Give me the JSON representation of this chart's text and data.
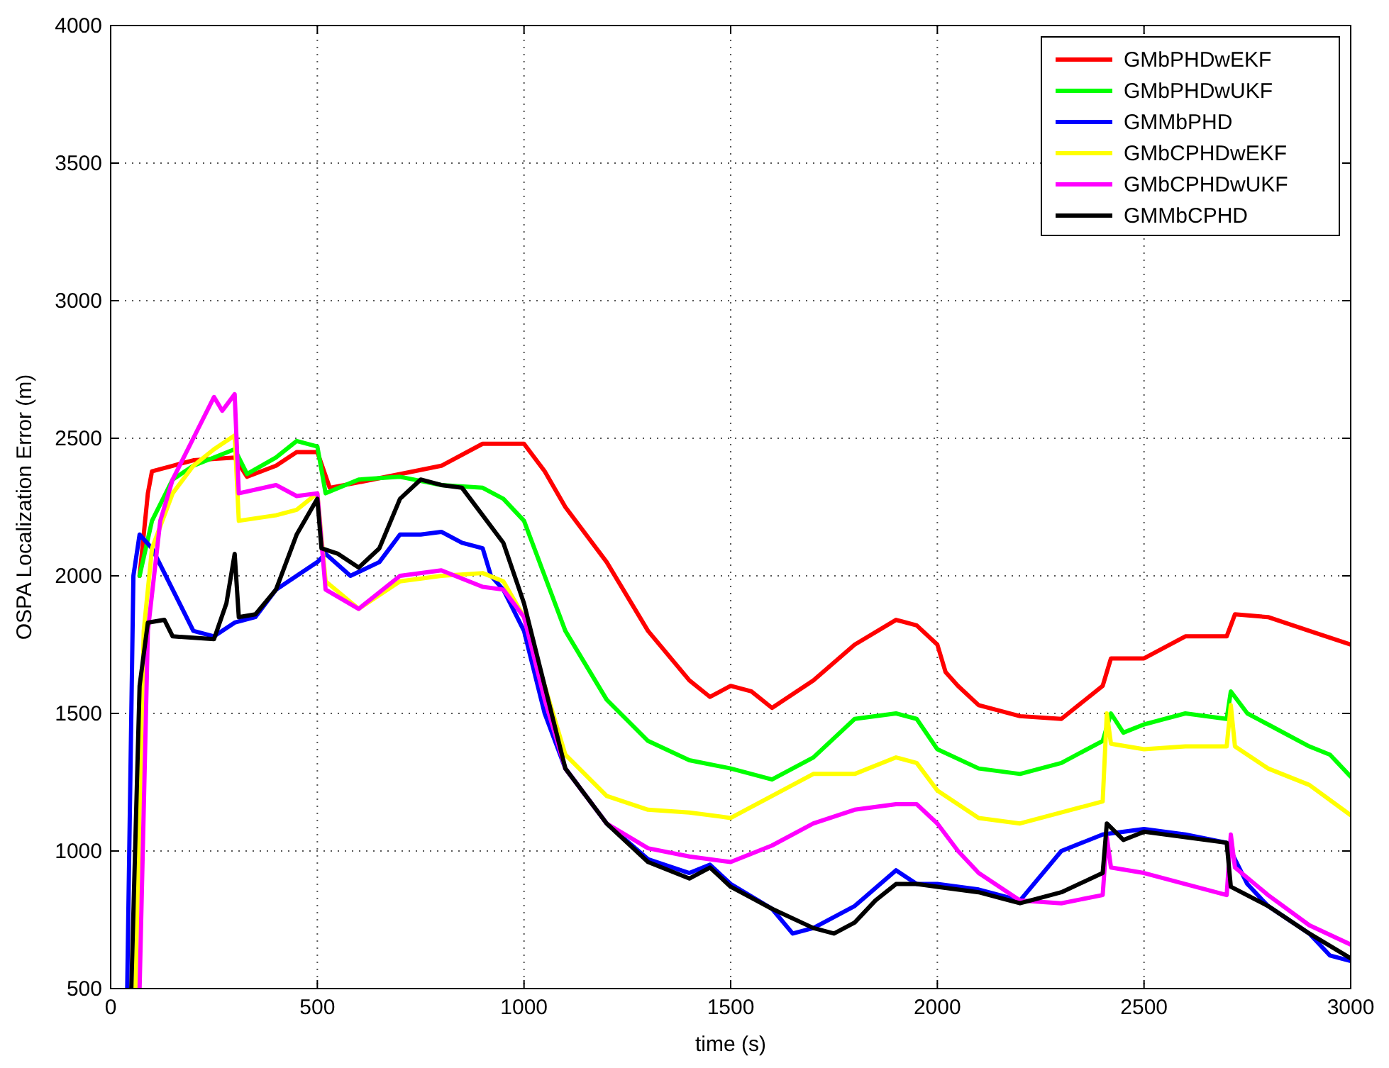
{
  "chart_data": {
    "type": "line",
    "xlabel": "time (s)",
    "ylabel": "OSPA Localization Error (m)",
    "xlim": [
      0,
      3000
    ],
    "ylim": [
      500,
      4000
    ],
    "xticks": [
      0,
      500,
      1000,
      1500,
      2000,
      2500,
      3000
    ],
    "yticks": [
      500,
      1000,
      1500,
      2000,
      2500,
      3000,
      3500,
      4000
    ],
    "grid": true,
    "legend": "top right",
    "line_style": "solid",
    "series": [
      {
        "name": "GMbPHDwEKF",
        "color": "#ff0000",
        "x": [
          70,
          90,
          100,
          150,
          200,
          300,
          330,
          400,
          450,
          500,
          530,
          600,
          700,
          800,
          900,
          1000,
          1050,
          1100,
          1200,
          1300,
          1400,
          1450,
          1500,
          1550,
          1600,
          1700,
          1800,
          1900,
          1950,
          2000,
          2020,
          2050,
          2100,
          2200,
          2300,
          2400,
          2420,
          2500,
          2600,
          2700,
          2720,
          2800,
          2900,
          3000
        ],
        "values": [
          2000,
          2300,
          2380,
          2400,
          2420,
          2430,
          2360,
          2400,
          2450,
          2450,
          2320,
          2340,
          2370,
          2400,
          2480,
          2480,
          2380,
          2250,
          2050,
          1800,
          1620,
          1560,
          1600,
          1580,
          1520,
          1620,
          1750,
          1840,
          1820,
          1750,
          1650,
          1600,
          1530,
          1490,
          1480,
          1600,
          1700,
          1700,
          1780,
          1780,
          1860,
          1850,
          1800,
          1750
        ]
      },
      {
        "name": "GMbPHDwUKF",
        "color": "#00ff00",
        "x": [
          70,
          100,
          150,
          200,
          300,
          330,
          400,
          450,
          500,
          520,
          600,
          700,
          800,
          900,
          950,
          1000,
          1050,
          1100,
          1200,
          1300,
          1400,
          1500,
          1550,
          1600,
          1700,
          1800,
          1900,
          1950,
          2000,
          2100,
          2200,
          2300,
          2400,
          2420,
          2450,
          2500,
          2600,
          2700,
          2710,
          2750,
          2800,
          2900,
          2950,
          3000
        ],
        "values": [
          2000,
          2200,
          2350,
          2400,
          2460,
          2370,
          2430,
          2490,
          2470,
          2300,
          2350,
          2360,
          2330,
          2320,
          2280,
          2200,
          2000,
          1800,
          1550,
          1400,
          1330,
          1300,
          1280,
          1260,
          1340,
          1480,
          1500,
          1480,
          1370,
          1300,
          1280,
          1320,
          1400,
          1500,
          1430,
          1460,
          1500,
          1480,
          1580,
          1500,
          1460,
          1380,
          1350,
          1270
        ]
      },
      {
        "name": "GMMbPHD",
        "color": "#0000ff",
        "x": [
          40,
          55,
          70,
          100,
          150,
          200,
          250,
          300,
          350,
          400,
          450,
          500,
          520,
          580,
          650,
          700,
          750,
          800,
          850,
          900,
          920,
          950,
          1000,
          1050,
          1100,
          1200,
          1300,
          1400,
          1450,
          1500,
          1600,
          1650,
          1700,
          1800,
          1900,
          1950,
          2000,
          2100,
          2200,
          2300,
          2400,
          2500,
          2600,
          2700,
          2750,
          2800,
          2900,
          2950,
          3000
        ],
        "values": [
          500,
          2000,
          2150,
          2100,
          1950,
          1800,
          1780,
          1830,
          1850,
          1950,
          2000,
          2050,
          2080,
          2000,
          2050,
          2150,
          2150,
          2160,
          2120,
          2100,
          2000,
          1950,
          1800,
          1500,
          1300,
          1100,
          970,
          920,
          950,
          880,
          790,
          700,
          720,
          800,
          930,
          880,
          880,
          860,
          820,
          1000,
          1060,
          1080,
          1060,
          1030,
          880,
          800,
          700,
          620,
          600
        ]
      },
      {
        "name": "GMbCPHDwEKF",
        "color": "#ffff00",
        "x": [
          60,
          80,
          100,
          150,
          200,
          250,
          300,
          310,
          400,
          450,
          500,
          520,
          600,
          700,
          800,
          900,
          950,
          1000,
          1050,
          1100,
          1200,
          1300,
          1400,
          1500,
          1600,
          1700,
          1800,
          1900,
          1950,
          2000,
          2100,
          2200,
          2300,
          2400,
          2410,
          2420,
          2500,
          2600,
          2700,
          2710,
          2720,
          2800,
          2900,
          3000
        ],
        "values": [
          500,
          1800,
          2100,
          2300,
          2400,
          2460,
          2510,
          2200,
          2220,
          2240,
          2300,
          1980,
          1880,
          1980,
          2000,
          2010,
          1980,
          1850,
          1600,
          1350,
          1200,
          1150,
          1140,
          1120,
          1200,
          1280,
          1280,
          1340,
          1320,
          1220,
          1120,
          1100,
          1140,
          1180,
          1500,
          1390,
          1370,
          1380,
          1380,
          1530,
          1380,
          1300,
          1240,
          1130
        ]
      },
      {
        "name": "GMbCPHDwUKF",
        "color": "#ff00ff",
        "x": [
          70,
          90,
          120,
          150,
          200,
          250,
          270,
          300,
          310,
          400,
          450,
          500,
          520,
          600,
          700,
          800,
          900,
          950,
          1000,
          1050,
          1100,
          1200,
          1300,
          1400,
          1500,
          1600,
          1700,
          1800,
          1900,
          1950,
          2000,
          2050,
          2100,
          2200,
          2300,
          2400,
          2410,
          2420,
          2500,
          2600,
          2700,
          2710,
          2720,
          2800,
          2900,
          3000
        ],
        "values": [
          500,
          1800,
          2200,
          2350,
          2500,
          2650,
          2600,
          2660,
          2300,
          2330,
          2290,
          2300,
          1950,
          1880,
          2000,
          2020,
          1960,
          1950,
          1850,
          1550,
          1300,
          1100,
          1010,
          980,
          960,
          1020,
          1100,
          1150,
          1170,
          1170,
          1100,
          1000,
          920,
          820,
          810,
          840,
          1050,
          940,
          920,
          880,
          840,
          1060,
          940,
          840,
          730,
          660
        ]
      },
      {
        "name": "GMMbCPHD",
        "color": "#000000",
        "x": [
          50,
          70,
          90,
          130,
          150,
          250,
          280,
          300,
          310,
          350,
          400,
          450,
          500,
          510,
          550,
          600,
          650,
          700,
          750,
          800,
          850,
          900,
          950,
          1000,
          1050,
          1100,
          1200,
          1300,
          1400,
          1450,
          1500,
          1600,
          1700,
          1750,
          1800,
          1850,
          1900,
          1950,
          2000,
          2100,
          2200,
          2300,
          2400,
          2410,
          2450,
          2500,
          2600,
          2700,
          2710,
          2800,
          2900,
          3000
        ],
        "values": [
          500,
          1600,
          1830,
          1840,
          1780,
          1770,
          1900,
          2080,
          1850,
          1860,
          1950,
          2150,
          2280,
          2100,
          2080,
          2030,
          2100,
          2280,
          2350,
          2330,
          2320,
          2220,
          2120,
          1900,
          1600,
          1300,
          1100,
          960,
          900,
          940,
          870,
          790,
          720,
          700,
          740,
          820,
          880,
          880,
          870,
          850,
          810,
          850,
          920,
          1100,
          1040,
          1070,
          1050,
          1030,
          870,
          800,
          700,
          610
        ]
      }
    ]
  }
}
